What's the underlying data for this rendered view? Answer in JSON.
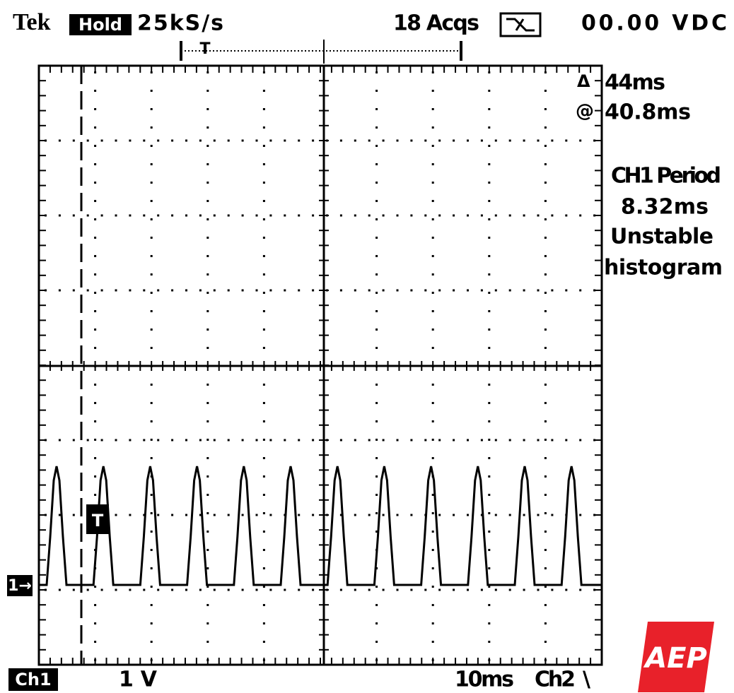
{
  "header": {
    "brand": "Tek",
    "mode": "Hold",
    "sample_rate": "25kS/s",
    "acquisitions": "18 Acqs",
    "readout": "00.00 VDC"
  },
  "cursor": {
    "trigger_marker": "T"
  },
  "measurements": {
    "delta_symbol": "Δ",
    "delta": "44ms",
    "at_symbol": "@",
    "position": "40.8ms",
    "channel_measure": "CH1 Period",
    "value": "8.32ms",
    "status": "Unstable",
    "mode": "histogram"
  },
  "footer": {
    "channel": "Ch1",
    "volts_per_div": "1 V",
    "time_per_div": "10ms",
    "trigger_source": "Ch2",
    "trigger_slope": "\\"
  },
  "markers": {
    "channel_ground": "1→",
    "trigger_level": "T"
  },
  "logo": "AEP"
}
